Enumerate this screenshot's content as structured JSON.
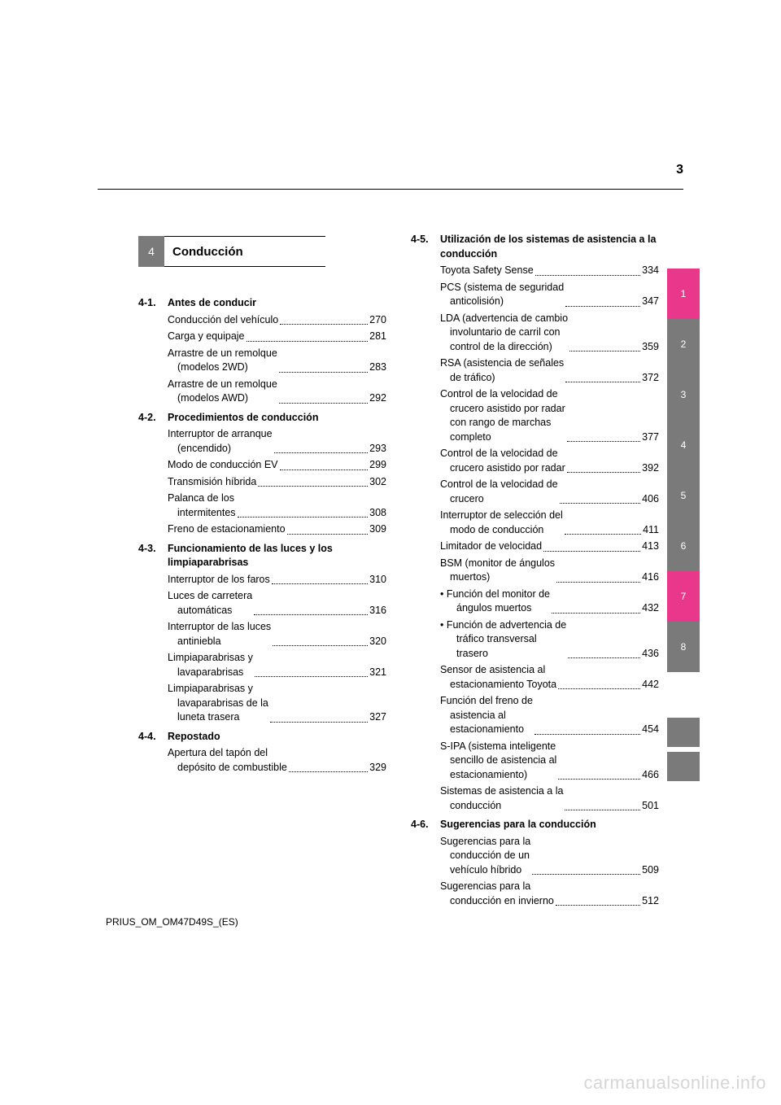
{
  "page_number": "3",
  "section": {
    "number": "4",
    "title": "Conducción"
  },
  "colors": {
    "grey_tab": "#7a7a7a",
    "pink_tab": "#e9378b",
    "white": "#ffffff",
    "watermark": "#d6d6d6"
  },
  "left_column": [
    {
      "type": "sub",
      "num": "4-1.",
      "title": "Antes de conducir"
    },
    {
      "type": "entry",
      "lines": [
        "Conducción del vehículo"
      ],
      "page": "270"
    },
    {
      "type": "entry",
      "lines": [
        "Carga y equipaje"
      ],
      "page": "281"
    },
    {
      "type": "entry",
      "lines": [
        "Arrastre de un remolque",
        "(modelos 2WD)"
      ],
      "page": "283"
    },
    {
      "type": "entry",
      "lines": [
        "Arrastre de un remolque",
        "(modelos AWD)"
      ],
      "page": "292"
    },
    {
      "type": "sub",
      "num": "4-2.",
      "title": "Procedimientos de conducción"
    },
    {
      "type": "entry",
      "lines": [
        "Interruptor de arranque",
        "(encendido)"
      ],
      "page": "293"
    },
    {
      "type": "entry",
      "lines": [
        "Modo de conducción EV"
      ],
      "page": "299"
    },
    {
      "type": "entry",
      "lines": [
        "Transmisión híbrida"
      ],
      "page": "302"
    },
    {
      "type": "entry",
      "lines": [
        "Palanca de los",
        "intermitentes"
      ],
      "page": "308"
    },
    {
      "type": "entry",
      "lines": [
        "Freno de estacionamiento"
      ],
      "page": "309"
    },
    {
      "type": "sub",
      "num": "4-3.",
      "title": "Funcionamiento de las luces y los limpiaparabrisas"
    },
    {
      "type": "entry",
      "lines": [
        "Interruptor de los faros"
      ],
      "page": "310"
    },
    {
      "type": "entry",
      "lines": [
        "Luces de carretera",
        "automáticas"
      ],
      "page": "316"
    },
    {
      "type": "entry",
      "lines": [
        "Interruptor de las luces",
        "antiniebla"
      ],
      "page": "320"
    },
    {
      "type": "entry",
      "lines": [
        "Limpiaparabrisas y",
        "lavaparabrisas"
      ],
      "page": "321"
    },
    {
      "type": "entry",
      "lines": [
        "Limpiaparabrisas y",
        "lavaparabrisas de la",
        "luneta trasera"
      ],
      "page": "327"
    },
    {
      "type": "sub",
      "num": "4-4.",
      "title": "Repostado"
    },
    {
      "type": "entry",
      "lines": [
        "Apertura del tapón del",
        "depósito de combustible"
      ],
      "page": "329"
    }
  ],
  "right_column": [
    {
      "type": "sub",
      "num": "4-5.",
      "title": "Utilización de los sistemas de asistencia a la conducción"
    },
    {
      "type": "entry",
      "lines": [
        "Toyota Safety Sense"
      ],
      "page": "334"
    },
    {
      "type": "entry",
      "lines": [
        "PCS (sistema de seguridad",
        "anticolisión)"
      ],
      "page": "347"
    },
    {
      "type": "entry",
      "lines": [
        "LDA (advertencia de cambio",
        "involuntario de carril con",
        "control de la dirección)"
      ],
      "page": "359"
    },
    {
      "type": "entry",
      "lines": [
        "RSA (asistencia de señales",
        "de tráfico)"
      ],
      "page": "372"
    },
    {
      "type": "entry",
      "lines": [
        "Control de la velocidad de",
        "crucero asistido por radar",
        "con rango de marchas",
        "completo"
      ],
      "page": "377"
    },
    {
      "type": "entry",
      "lines": [
        "Control de la velocidad de",
        "crucero asistido por radar"
      ],
      "page": "392"
    },
    {
      "type": "entry",
      "lines": [
        "Control de la velocidad de",
        "crucero"
      ],
      "page": "406"
    },
    {
      "type": "entry",
      "lines": [
        "Interruptor de selección del",
        "modo de conducción"
      ],
      "page": "411"
    },
    {
      "type": "entry",
      "lines": [
        "Limitador de velocidad"
      ],
      "page": "413"
    },
    {
      "type": "entry",
      "lines": [
        "BSM (monitor de ángulos",
        "muertos)"
      ],
      "page": "416"
    },
    {
      "type": "bullet",
      "lines": [
        "• Función del monitor de",
        "ángulos muertos"
      ],
      "page": "432"
    },
    {
      "type": "bullet",
      "lines": [
        "• Función de advertencia de",
        "tráfico transversal",
        "trasero"
      ],
      "page": "436"
    },
    {
      "type": "entry",
      "lines": [
        "Sensor de asistencia al",
        "estacionamiento Toyota"
      ],
      "page": "442"
    },
    {
      "type": "entry",
      "lines": [
        "Función del freno de",
        "asistencia al",
        "estacionamiento"
      ],
      "page": "454"
    },
    {
      "type": "entry",
      "lines": [
        "S-IPA (sistema inteligente",
        "sencillo de asistencia al",
        "estacionamiento)"
      ],
      "page": "466"
    },
    {
      "type": "entry",
      "lines": [
        "Sistemas de asistencia a la",
        "conducción"
      ],
      "page": "501"
    },
    {
      "type": "sub",
      "num": "4-6.",
      "title": "Sugerencias para la conducción"
    },
    {
      "type": "entry",
      "lines": [
        "Sugerencias para la",
        "conducción de un",
        "vehículo híbrido"
      ],
      "page": "509"
    },
    {
      "type": "entry",
      "lines": [
        "Sugerencias para la",
        "conducción en invierno"
      ],
      "page": "512"
    }
  ],
  "side_tabs": [
    {
      "label": "1",
      "color": "#e9378b"
    },
    {
      "label": "2",
      "color": "#7a7a7a"
    },
    {
      "label": "3",
      "color": "#7a7a7a"
    },
    {
      "label": "4",
      "color": "#7a7a7a"
    },
    {
      "label": "5",
      "color": "#7a7a7a"
    },
    {
      "label": "6",
      "color": "#7a7a7a"
    },
    {
      "label": "7",
      "color": "#e9378b"
    },
    {
      "label": "8",
      "color": "#7a7a7a"
    }
  ],
  "footer": "PRIUS_OM_OM47D49S_(ES)",
  "watermark": "carmanualsonline.info"
}
